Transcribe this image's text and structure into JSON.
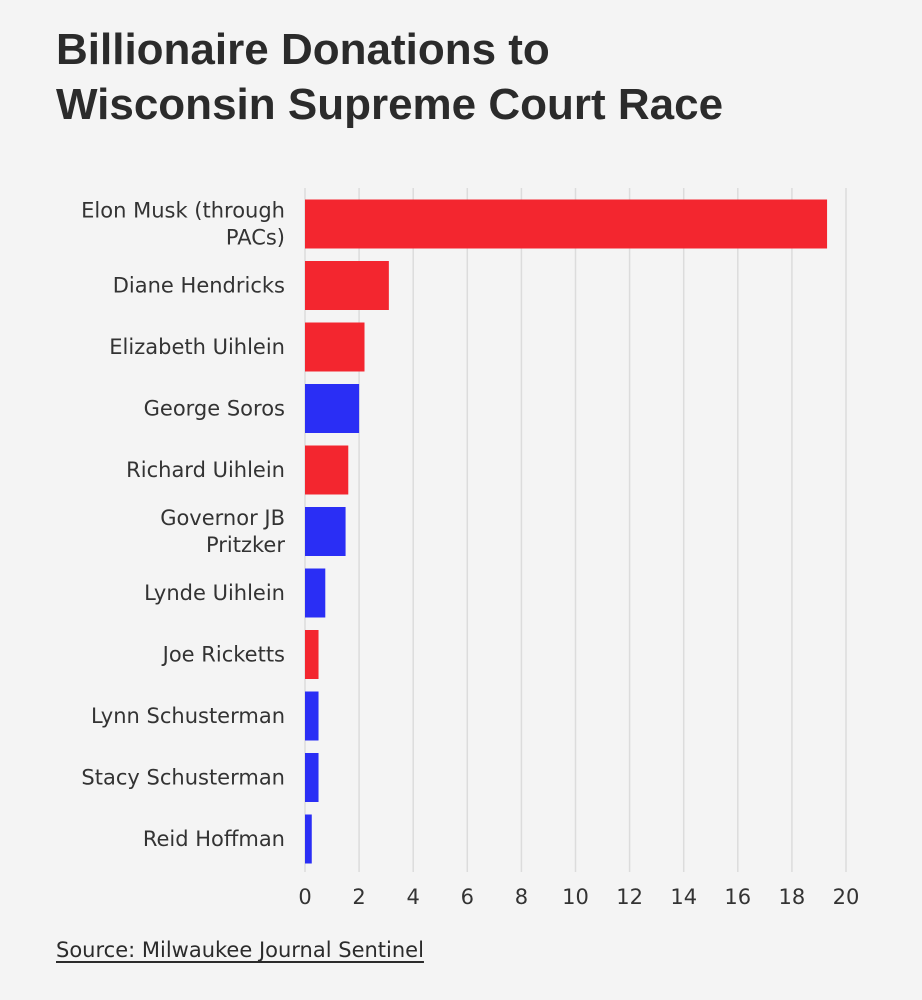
{
  "chart_data": {
    "type": "bar",
    "orientation": "horizontal",
    "title": [
      "Billionaire Donations to",
      "Wisconsin Supreme Court Race"
    ],
    "source": "Source: Milwaukee Journal Sentinel",
    "categories": [
      [
        "Elon Musk (through",
        "PACs)"
      ],
      [
        "Diane Hendricks"
      ],
      [
        "Elizabeth Uihlein"
      ],
      [
        "George Soros"
      ],
      [
        "Richard Uihlein"
      ],
      [
        "Governor JB",
        "Pritzker"
      ],
      [
        "Lynde Uihlein"
      ],
      [
        "Joe Ricketts"
      ],
      [
        "Lynn Schusterman"
      ],
      [
        "Stacy Schusterman"
      ],
      [
        "Reid Hoffman"
      ]
    ],
    "values": [
      19.3,
      3.1,
      2.2,
      2.0,
      1.6,
      1.5,
      0.75,
      0.5,
      0.5,
      0.5,
      0.25
    ],
    "bar_colors": [
      "#f3262f",
      "#f3262f",
      "#f3262f",
      "#2a2ef5",
      "#f3262f",
      "#2a2ef5",
      "#2a2ef5",
      "#f3262f",
      "#2a2ef5",
      "#2a2ef5",
      "#2a2ef5"
    ],
    "xlim": [
      0,
      20
    ],
    "xticks": [
      0,
      2,
      4,
      6,
      8,
      10,
      12,
      14,
      16,
      18,
      20
    ],
    "grid": "vertical",
    "legend": "none"
  }
}
